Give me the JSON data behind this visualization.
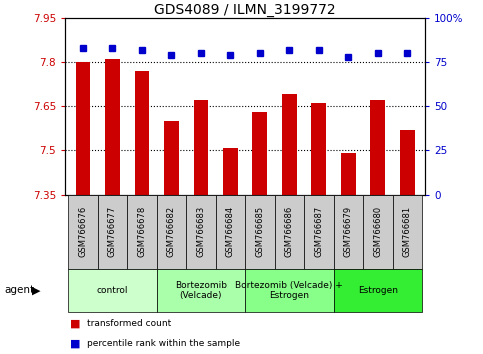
{
  "title": "GDS4089 / ILMN_3199772",
  "samples": [
    "GSM766676",
    "GSM766677",
    "GSM766678",
    "GSM766682",
    "GSM766683",
    "GSM766684",
    "GSM766685",
    "GSM766686",
    "GSM766687",
    "GSM766679",
    "GSM766680",
    "GSM766681"
  ],
  "bar_values": [
    7.8,
    7.81,
    7.77,
    7.6,
    7.67,
    7.51,
    7.63,
    7.69,
    7.66,
    7.49,
    7.67,
    7.57
  ],
  "percentile_values": [
    83,
    83,
    82,
    79,
    80,
    79,
    80,
    82,
    82,
    78,
    80,
    80
  ],
  "bar_color": "#cc0000",
  "dot_color": "#0000cc",
  "ylim_left": [
    7.35,
    7.95
  ],
  "ylim_right": [
    0,
    100
  ],
  "yticks_left": [
    7.35,
    7.5,
    7.65,
    7.8,
    7.95
  ],
  "yticks_right": [
    0,
    25,
    50,
    75,
    100
  ],
  "ytick_labels_left": [
    "7.35",
    "7.5",
    "7.65",
    "7.8",
    "7.95"
  ],
  "ytick_labels_right": [
    "0",
    "25",
    "50",
    "75",
    "100%"
  ],
  "hlines": [
    7.5,
    7.65,
    7.8
  ],
  "groups": [
    {
      "label": "control",
      "start": 0,
      "end": 3,
      "color": "#ccffcc"
    },
    {
      "label": "Bortezomib\n(Velcade)",
      "start": 3,
      "end": 6,
      "color": "#aaffaa"
    },
    {
      "label": "Bortezomib (Velcade) +\nEstrogen",
      "start": 6,
      "end": 9,
      "color": "#88ff88"
    },
    {
      "label": "Estrogen",
      "start": 9,
      "end": 12,
      "color": "#33ee33"
    }
  ],
  "agent_label": "agent",
  "legend_bar_label": "transformed count",
  "legend_dot_label": "percentile rank within the sample",
  "bar_width": 0.5,
  "title_fontsize": 10,
  "tick_fontsize": 7.5,
  "label_fontsize": 7.5,
  "cell_color": "#cccccc"
}
